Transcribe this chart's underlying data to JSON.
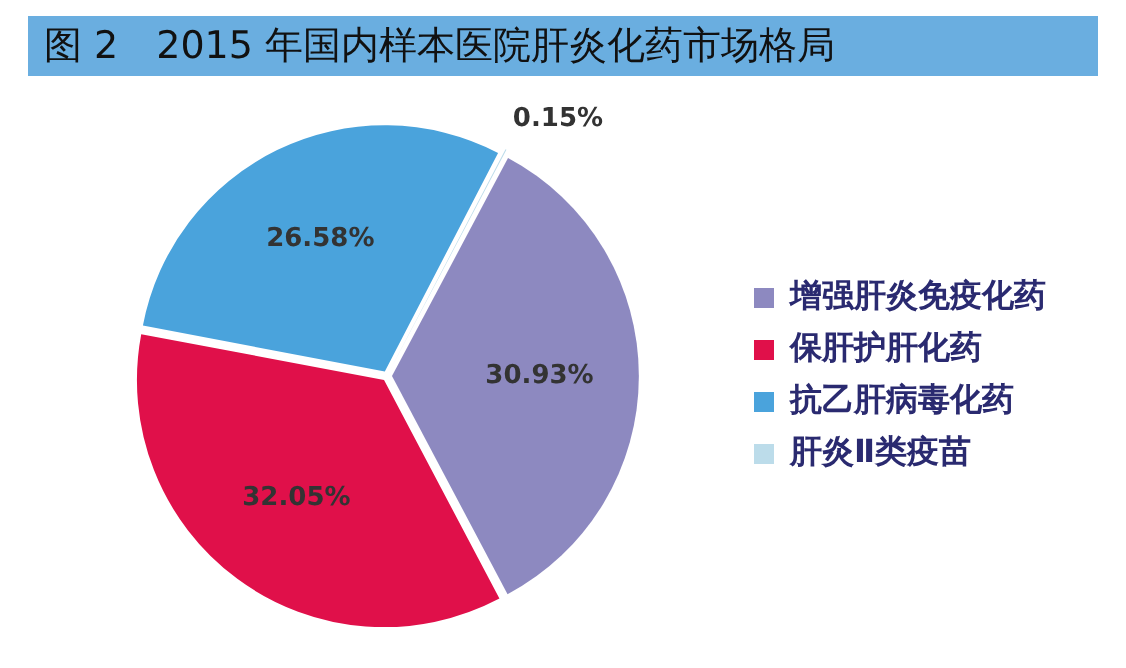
{
  "chart_data": {
    "type": "pie",
    "title": "图 2　2015 年国内样本医院肝炎化药市场格局",
    "categories": [
      "增强肝炎免疫化药",
      "保肝护肝化药",
      "抗乙肝病毒化药",
      "肝炎Ⅱ类疫苗"
    ],
    "values": [
      30.93,
      32.05,
      26.58,
      0.15
    ],
    "value_labels": [
      "30.93%",
      "32.05%",
      "26.58%",
      "0.15%"
    ],
    "colors": [
      "#8d89c0",
      "#e0104a",
      "#4aa3dc",
      "#bcdcea"
    ],
    "legend": "right"
  }
}
